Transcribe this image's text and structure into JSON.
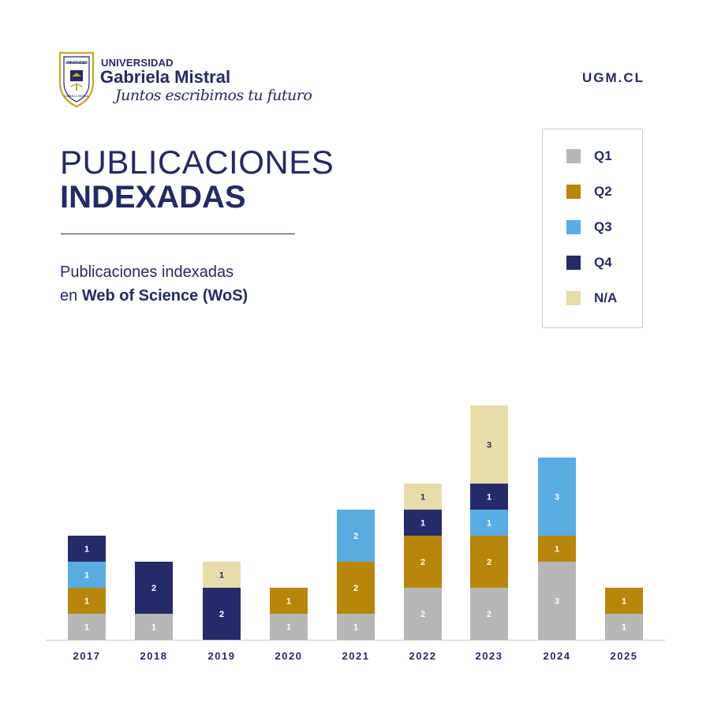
{
  "header": {
    "logo_top": "UNIVERSIDAD",
    "logo_main": "Gabriela Mistral",
    "slogan": "Juntos escribimos tu futuro",
    "seal_text_top": "UNIVERSIDAD",
    "seal_text_side": "GABRIELA MISTRAL",
    "site": "UGM.CL"
  },
  "title": {
    "line1": "PUBLICACIONES",
    "line2": "INDEXADAS"
  },
  "subtitle": {
    "line1": "Publicaciones indexadas",
    "line2_prefix": "en ",
    "line2_bold": "Web of Science (WoS)"
  },
  "colors": {
    "navy": "#242a66",
    "Q1": "#b7b7b7",
    "Q2": "#b8860b",
    "Q3": "#5aade2",
    "Q4": "#252b69",
    "N/A": "#e8dcaa"
  },
  "legend": [
    {
      "label": "Q1",
      "color": "#b7b7b7"
    },
    {
      "label": "Q2",
      "color": "#b8860b"
    },
    {
      "label": "Q3",
      "color": "#5aade2"
    },
    {
      "label": "Q4",
      "color": "#252b69"
    },
    {
      "label": "N/A",
      "color": "#e8dcaa"
    }
  ],
  "chart_data": {
    "type": "bar",
    "stacked": true,
    "categories": [
      "2017",
      "2018",
      "2019",
      "2020",
      "2021",
      "2022",
      "2023",
      "2024",
      "2025"
    ],
    "series": [
      {
        "name": "Q1",
        "values": [
          1,
          1,
          0,
          1,
          1,
          2,
          2,
          3,
          1
        ]
      },
      {
        "name": "Q2",
        "values": [
          1,
          0,
          0,
          1,
          2,
          2,
          2,
          1,
          1
        ]
      },
      {
        "name": "Q3",
        "values": [
          1,
          0,
          0,
          0,
          2,
          0,
          1,
          3,
          0
        ]
      },
      {
        "name": "Q4",
        "values": [
          1,
          2,
          2,
          0,
          0,
          1,
          1,
          0,
          0
        ]
      },
      {
        "name": "N/A",
        "values": [
          0,
          0,
          1,
          0,
          0,
          1,
          3,
          0,
          0
        ]
      }
    ],
    "ylim": [
      0,
      9
    ],
    "grid": false,
    "data_labels": true,
    "legend_position": "top-right"
  }
}
